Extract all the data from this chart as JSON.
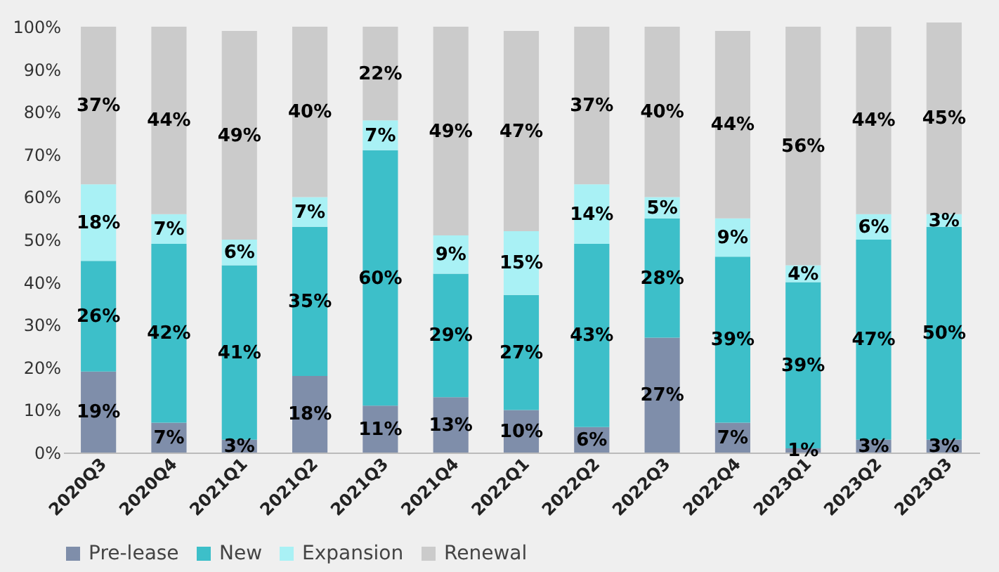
{
  "chart_data": {
    "type": "bar",
    "stacked": true,
    "categories": [
      "2020Q3",
      "2020Q4",
      "2021Q1",
      "2021Q2",
      "2021Q3",
      "2021Q4",
      "2022Q1",
      "2022Q2",
      "2022Q3",
      "2022Q4",
      "2023Q1",
      "2023Q2",
      "2023Q3"
    ],
    "series": [
      {
        "name": "Pre-lease",
        "color": "#7f8eaa",
        "values": [
          19,
          7,
          3,
          18,
          11,
          13,
          10,
          6,
          27,
          7,
          1,
          3,
          3
        ],
        "value_labels": [
          "19%",
          "7%",
          "3%",
          "18%",
          "11%",
          "13%",
          "10%",
          "6%",
          "27%",
          "7%",
          "1%",
          "3%",
          "3%"
        ]
      },
      {
        "name": "New",
        "color": "#3dbfc9",
        "values": [
          26,
          42,
          41,
          35,
          60,
          29,
          27,
          43,
          28,
          39,
          39,
          47,
          50
        ],
        "value_labels": [
          "26%",
          "42%",
          "41%",
          "35%",
          "60%",
          "29%",
          "27%",
          "43%",
          "28%",
          "39%",
          "39%",
          "47%",
          "50%"
        ]
      },
      {
        "name": "Expansion",
        "color": "#a9f1f5",
        "values": [
          18,
          7,
          6,
          7,
          7,
          9,
          15,
          14,
          5,
          9,
          4,
          6,
          3
        ],
        "value_labels": [
          "18%",
          "7%",
          "6%",
          "7%",
          "7%",
          "9%",
          "15%",
          "14%",
          "5%",
          "9%",
          "4%",
          "6%",
          "3%"
        ]
      },
      {
        "name": "Renewal",
        "color": "#cbcbcb",
        "values": [
          37,
          44,
          49,
          40,
          22,
          49,
          47,
          37,
          40,
          44,
          56,
          44,
          45
        ],
        "value_labels": [
          "37%",
          "44%",
          "49%",
          "40%",
          "22%",
          "49%",
          "47%",
          "37%",
          "40%",
          "44%",
          "56%",
          "44%",
          "45%"
        ]
      }
    ],
    "ylim": [
      0,
      101
    ],
    "yticks": [
      {
        "value": 0,
        "label": "0%"
      },
      {
        "value": 10,
        "label": "10%"
      },
      {
        "value": 20,
        "label": "20%"
      },
      {
        "value": 30,
        "label": "30%"
      },
      {
        "value": 40,
        "label": "40%"
      },
      {
        "value": 50,
        "label": "50%"
      },
      {
        "value": 60,
        "label": "60%"
      },
      {
        "value": 70,
        "label": "70%"
      },
      {
        "value": 80,
        "label": "80%"
      },
      {
        "value": 90,
        "label": "90%"
      },
      {
        "value": 100,
        "label": "100%"
      }
    ],
    "grid": false,
    "legend": "bottom"
  }
}
